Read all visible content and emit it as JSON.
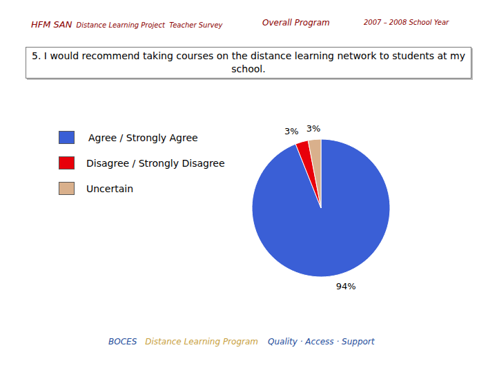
{
  "header": {
    "org": "HFM SAN",
    "project": "Distance Learning Project  Teacher Survey",
    "scope": "Overall Program",
    "year": "2007 – 2008 School Year"
  },
  "chart_data": {
    "type": "pie",
    "title": "5. I would recommend taking courses on the distance learning network to students at my school.",
    "categories": [
      "Agree / Strongly Agree",
      "Disagree / Strongly Disagree",
      "Uncertain"
    ],
    "values": [
      94,
      3,
      3
    ],
    "value_labels": [
      "94%",
      "3%",
      "3%"
    ],
    "colors": [
      "#3a5fd6",
      "#e8000a",
      "#d9b08c"
    ],
    "data_labels": true,
    "legend": "upper left"
  },
  "footer": {
    "org": "BOCES",
    "program": "Distance Learning Program",
    "motto": "Quality · Access · Support"
  }
}
